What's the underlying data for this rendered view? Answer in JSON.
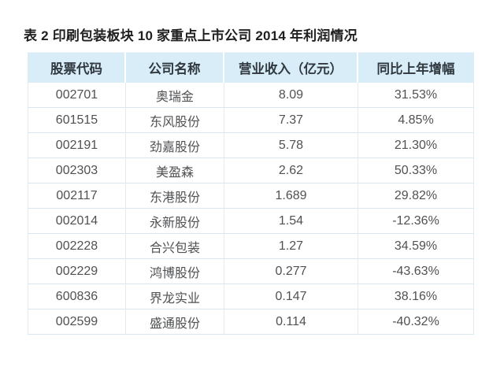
{
  "title": "表 2 印刷包装板块 10 家重点上市公司 2014 年利润情况",
  "chart_data": {
    "type": "table",
    "title": "表 2 印刷包装板块 10 家重点上市公司 2014 年利润情况",
    "columns": [
      "股票代码",
      "公司名称",
      "营业收入（亿元）",
      "同比上年增幅"
    ],
    "rows": [
      [
        "002701",
        "奥瑞金",
        "8.09",
        "31.53%"
      ],
      [
        "601515",
        "东风股份",
        "7.37",
        "4.85%"
      ],
      [
        "002191",
        "劲嘉股份",
        "5.78",
        "21.30%"
      ],
      [
        "002303",
        "美盈森",
        "2.62",
        "50.33%"
      ],
      [
        "002117",
        "东港股份",
        "1.689",
        "29.82%"
      ],
      [
        "002014",
        "永新股份",
        "1.54",
        "-12.36%"
      ],
      [
        "002228",
        "合兴包装",
        "1.27",
        "34.59%"
      ],
      [
        "002229",
        "鸿博股份",
        "0.277",
        "-43.63%"
      ],
      [
        "600836",
        "界龙实业",
        "0.147",
        "38.16%"
      ],
      [
        "002599",
        "盛通股份",
        "0.114",
        "-40.32%"
      ]
    ]
  },
  "colors": {
    "page_bg": "#ffffff",
    "title_text": "#1f1f1f",
    "header_bg": "#d9edf8",
    "header_text": "#303840",
    "body_text": "#4f5153",
    "row_border": "#d9e7ef",
    "col_border": "#e4ebef"
  }
}
